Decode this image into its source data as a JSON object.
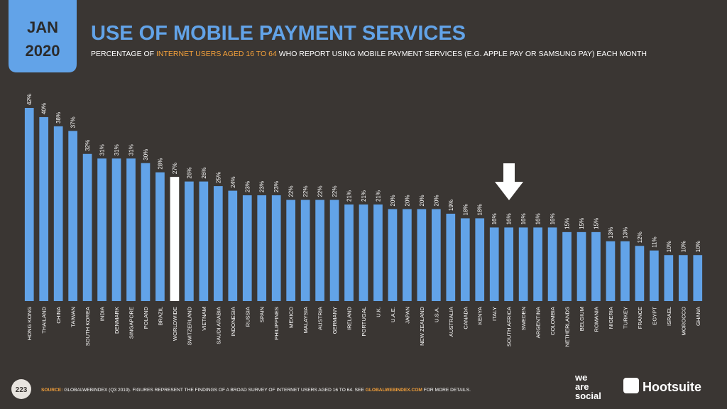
{
  "header": {
    "month": "JAN",
    "year": "2020"
  },
  "chart_data": {
    "type": "bar",
    "title": "USE OF MOBILE PAYMENT SERVICES",
    "subtitle": [
      "PERCENTAGE OF ",
      "INTERNET USERS AGED 16 TO 64",
      " WHO REPORT USING MOBILE PAYMENT SERVICES (E.G. APPLE PAY OR SAMSUNG PAY) EACH MONTH"
    ],
    "categories": [
      "HONG KONG",
      "THAILAND",
      "CHINA",
      "TAIWAN",
      "SOUTH KOREA",
      "INDIA",
      "DENMARK",
      "SINGAPORE",
      "POLAND",
      "BRAZIL",
      "WORLDWIDE",
      "SWITZERLAND",
      "VIETNAM",
      "SAUDI ARABIA",
      "INDONESIA",
      "RUSSIA",
      "SPAIN",
      "PHILIPPINES",
      "MEXICO",
      "MALAYSIA",
      "AUSTRIA",
      "GERMANY",
      "IRELAND",
      "PORTUGAL",
      "U.K.",
      "U.A.E.",
      "JAPAN",
      "NEW ZEALAND",
      "U.S.A.",
      "AUSTRALIA",
      "CANADA",
      "KENYA",
      "ITALY",
      "SOUTH AFRICA",
      "SWEDEN",
      "ARGENTINA",
      "COLOMBIA",
      "NETHERLANDS",
      "BELGIUM",
      "ROMANIA",
      "NIGERIA",
      "TURKEY",
      "FRANCE",
      "EGYPT",
      "ISRAEL",
      "MOROCCO",
      "GHANA"
    ],
    "values": [
      42,
      40,
      38,
      37,
      32,
      31,
      31,
      31,
      30,
      28,
      27,
      26,
      26,
      25,
      24,
      23,
      23,
      23,
      22,
      22,
      22,
      22,
      21,
      21,
      21,
      20,
      20,
      20,
      20,
      19,
      18,
      18,
      16,
      16,
      16,
      16,
      16,
      15,
      15,
      15,
      13,
      13,
      12,
      11,
      10,
      10,
      10
    ],
    "value_labels": [
      "42%",
      "40%",
      "38%",
      "37%",
      "32%",
      "31%",
      "31%",
      "31%",
      "30%",
      "28%",
      "27%",
      "26%",
      "26%",
      "25%",
      "24%",
      "23%",
      "23%",
      "23%",
      "22%",
      "22%",
      "22%",
      "22%",
      "21%",
      "21%",
      "21%",
      "20%",
      "20%",
      "20%",
      "20%",
      "19%",
      "18%",
      "18%",
      "16%",
      "16%",
      "16%",
      "16%",
      "16%",
      "15%",
      "15%",
      "15%",
      "13%",
      "13%",
      "12%",
      "11%",
      "10%",
      "10%",
      "10%"
    ],
    "colors": [
      "#62a3e8",
      "#62a3e8",
      "#62a3e8",
      "#62a3e8",
      "#62a3e8",
      "#62a3e8",
      "#62a3e8",
      "#62a3e8",
      "#62a3e8",
      "#62a3e8",
      "#ffffff",
      "#62a3e8",
      "#62a3e8",
      "#62a3e8",
      "#62a3e8",
      "#62a3e8",
      "#62a3e8",
      "#62a3e8",
      "#62a3e8",
      "#62a3e8",
      "#62a3e8",
      "#62a3e8",
      "#62a3e8",
      "#62a3e8",
      "#62a3e8",
      "#62a3e8",
      "#62a3e8",
      "#62a3e8",
      "#62a3e8",
      "#62a3e8",
      "#62a3e8",
      "#62a3e8",
      "#62a3e8",
      "#62a3e8",
      "#62a3e8",
      "#62a3e8",
      "#62a3e8",
      "#62a3e8",
      "#62a3e8",
      "#62a3e8",
      "#62a3e8",
      "#62a3e8",
      "#62a3e8",
      "#62a3e8",
      "#62a3e8",
      "#62a3e8",
      "#62a3e8"
    ]
  },
  "footer": {
    "page": "223",
    "source_label": "SOURCE:",
    "source_text": " GLOBALWEBINDEX (Q3 2019). FIGURES REPRESENT THE FINDINGS OF A BROAD SURVEY OF INTERNET USERS AGED 16 TO 64. SEE ",
    "source_link": "GLOBALWEBINDEX.COM",
    "source_end": " FOR MORE DETAILS.",
    "logo1": [
      "we",
      "are",
      "social"
    ],
    "logo2": "Hootsuite"
  }
}
